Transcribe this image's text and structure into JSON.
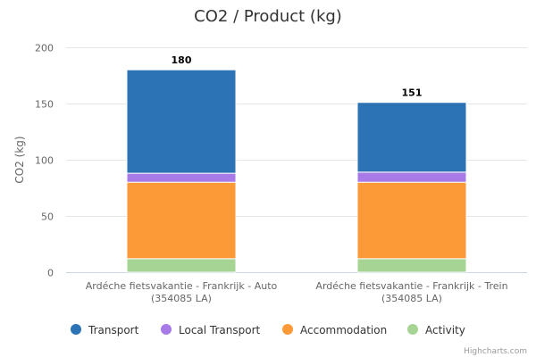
{
  "credits": "Highcharts.com",
  "chart_data": {
    "type": "bar",
    "stacked": true,
    "title": "CO2 / Product (kg)",
    "xlabel": "",
    "ylabel": "CO2 (kg)",
    "ylim": [
      0,
      200
    ],
    "yticks": [
      0,
      50,
      100,
      150,
      200
    ],
    "grid": true,
    "legend_position": "bottom",
    "categories": [
      [
        "Ardéche fietsvakantie - Frankrijk - Auto",
        "(354085 LA)"
      ],
      [
        "Ardéche fietsvakantie - Frankrijk - Trein",
        "(354085 LA)"
      ]
    ],
    "totals": [
      "180",
      "151"
    ],
    "series": [
      {
        "name": "Activity",
        "color": "#a6d494",
        "values": [
          12,
          12
        ]
      },
      {
        "name": "Accommodation",
        "color": "#fd9a38",
        "values": [
          68,
          68
        ]
      },
      {
        "name": "Local Transport",
        "color": "#a77ae8",
        "values": [
          8,
          9
        ]
      },
      {
        "name": "Transport",
        "color": "#2c73b5",
        "values": [
          92,
          62
        ]
      }
    ],
    "legend_order": [
      "Transport",
      "Local Transport",
      "Accommodation",
      "Activity"
    ]
  }
}
